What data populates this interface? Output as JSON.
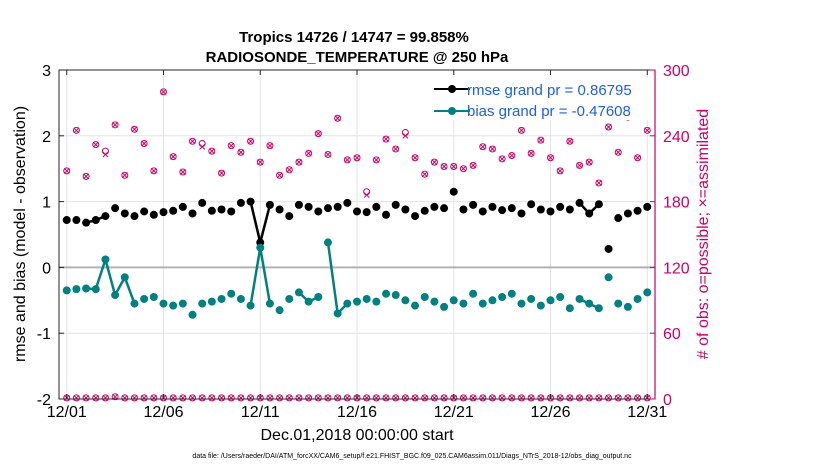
{
  "chart_data": {
    "type": "line",
    "title": [
      "Tropics 14726 / 14747 = 99.858%",
      "RADIOSONDE_TEMPERATURE @ 250 hPa"
    ],
    "xlabel": "Dec.01,2018 00:00:00 start",
    "ylabel_left": "rmse and bias (model - observation)",
    "ylabel_right": "# of obs: o=possible; ×=assimilated",
    "footnote": "data file: /Users/raeder/DAI/ATM_forcXX/CAM6_setup/f.e21.FHIST_BGC.f09_025.CAM6assim.011/Diags_NTrS_2018-12/obs_diag_output.nc",
    "xlim": [
      0.6,
      31.4
    ],
    "ylim_left": [
      -2,
      3
    ],
    "ylim_right": [
      0,
      300
    ],
    "xticks": [
      1,
      6,
      11,
      16,
      21,
      26,
      31
    ],
    "xtick_labels": [
      "12/01",
      "12/06",
      "12/11",
      "12/16",
      "12/21",
      "12/26",
      "12/31"
    ],
    "yticks_left": [
      -2,
      -1,
      0,
      1,
      2,
      3
    ],
    "ytick_labels_left": [
      "-2",
      "-1",
      "0",
      "1",
      "2",
      "3"
    ],
    "yticks_right": [
      0,
      60,
      120,
      180,
      240,
      300
    ],
    "ytick_labels_right": [
      "0",
      "60",
      "120",
      "180",
      "240",
      "300"
    ],
    "x": [
      1.0,
      1.5,
      2.0,
      2.5,
      3.0,
      3.5,
      4.0,
      4.5,
      5.0,
      5.5,
      6.0,
      6.5,
      7.0,
      7.5,
      8.0,
      8.5,
      9.0,
      9.5,
      10.0,
      10.5,
      11.0,
      11.5,
      12.0,
      12.5,
      13.0,
      13.5,
      14.0,
      14.5,
      15.0,
      15.5,
      16.0,
      16.5,
      17.0,
      17.5,
      18.0,
      18.5,
      19.0,
      19.5,
      20.0,
      20.5,
      21.0,
      21.5,
      22.0,
      22.5,
      23.0,
      23.5,
      24.0,
      24.5,
      25.0,
      25.5,
      26.0,
      26.5,
      27.0,
      27.5,
      28.0,
      28.5,
      29.0,
      29.5,
      30.0,
      30.5,
      31.0
    ],
    "series": [
      {
        "name": "rmse grand pr = 0.86795",
        "axis": "left",
        "color": "#000000",
        "connected": [
          [
            2.0,
            2.5,
            3.0
          ],
          [
            10.5,
            11.0,
            11.5
          ],
          [
            27.5,
            28.0,
            28.5
          ]
        ],
        "values": [
          0.72,
          0.72,
          0.68,
          0.72,
          0.78,
          0.9,
          0.82,
          0.78,
          0.85,
          0.8,
          0.84,
          0.86,
          0.92,
          0.82,
          0.98,
          0.86,
          0.88,
          0.85,
          0.98,
          1.0,
          0.38,
          0.95,
          0.88,
          0.78,
          0.95,
          0.92,
          0.85,
          0.9,
          0.92,
          0.98,
          0.85,
          0.84,
          0.92,
          0.8,
          0.95,
          0.88,
          0.78,
          0.86,
          0.92,
          0.9,
          1.15,
          0.88,
          0.95,
          0.85,
          0.92,
          0.87,
          0.9,
          0.82,
          0.96,
          0.88,
          0.85,
          0.92,
          0.88,
          0.98,
          0.82,
          0.96,
          0.28,
          0.75,
          0.82,
          0.86,
          0.92
        ]
      },
      {
        "name": "bias grand pr = -0.47608",
        "axis": "left",
        "color": "#008080",
        "connected": [
          [
            2.0,
            2.5,
            3.0,
            3.5,
            4.0,
            4.5
          ],
          [
            10.5,
            11.0,
            11.5
          ],
          [
            13.0,
            13.5,
            14.0
          ],
          [
            14.5,
            15.0,
            15.5
          ],
          [
            27.5,
            28.0,
            28.5
          ]
        ],
        "values": [
          -0.35,
          -0.33,
          -0.32,
          -0.33,
          0.12,
          -0.42,
          -0.15,
          -0.55,
          -0.48,
          -0.45,
          -0.55,
          -0.58,
          -0.55,
          -0.72,
          -0.55,
          -0.52,
          -0.48,
          -0.4,
          -0.48,
          -0.58,
          0.3,
          -0.55,
          -0.65,
          -0.48,
          -0.38,
          -0.52,
          -0.45,
          0.38,
          -0.7,
          -0.55,
          -0.52,
          -0.48,
          -0.52,
          -0.4,
          -0.42,
          -0.5,
          -0.58,
          -0.45,
          -0.52,
          -0.6,
          -0.5,
          -0.55,
          -0.4,
          -0.55,
          -0.5,
          -0.45,
          -0.4,
          -0.55,
          -0.48,
          -0.58,
          -0.5,
          -0.45,
          -0.62,
          -0.48,
          -0.55,
          -0.62,
          -0.15,
          -0.55,
          -0.6,
          -0.48,
          -0.38
        ]
      },
      {
        "name": "obs possible",
        "axis": "right",
        "color": "#cc0066",
        "marker": "o",
        "values": [
          208,
          245,
          203,
          232,
          226,
          250,
          204,
          246,
          233,
          208,
          280,
          221,
          207,
          235,
          233,
          226,
          206,
          231,
          225,
          235,
          216,
          231,
          204,
          209,
          216,
          224,
          242,
          223,
          256,
          218,
          220,
          189,
          218,
          237,
          228,
          243,
          220,
          205,
          216,
          212,
          212,
          210,
          213,
          230,
          228,
          219,
          222,
          245,
          224,
          236,
          220,
          208,
          235,
          213,
          216,
          197,
          248,
          225,
          257,
          220,
          245
        ]
      },
      {
        "name": "obs assimilated",
        "axis": "right",
        "color": "#cc0066",
        "marker": "x",
        "values": [
          208,
          245,
          203,
          232,
          223,
          250,
          204,
          246,
          233,
          208,
          280,
          221,
          207,
          235,
          230,
          226,
          206,
          231,
          225,
          235,
          216,
          231,
          204,
          209,
          216,
          224,
          242,
          223,
          256,
          218,
          220,
          186,
          218,
          237,
          228,
          240,
          220,
          205,
          216,
          212,
          212,
          210,
          213,
          230,
          228,
          219,
          222,
          245,
          224,
          236,
          220,
          208,
          235,
          213,
          216,
          197,
          248,
          225,
          257,
          220,
          245
        ]
      },
      {
        "name": "obs baseline possible",
        "axis": "right",
        "color": "#cc0066",
        "marker": "o",
        "values": [
          1,
          1,
          1,
          1,
          1,
          2,
          1,
          1,
          1,
          1,
          1,
          1,
          1,
          1,
          1,
          1,
          1,
          1,
          1,
          1,
          1,
          1,
          1,
          1,
          1,
          1,
          1,
          1,
          1,
          1,
          1,
          1,
          1,
          1,
          1,
          1,
          1,
          1,
          1,
          1,
          1,
          1,
          1,
          1,
          1,
          1,
          1,
          1,
          1,
          1,
          1,
          1,
          1,
          1,
          1,
          1,
          1,
          1,
          1,
          1,
          1
        ]
      },
      {
        "name": "obs baseline assimilated",
        "axis": "right",
        "color": "#cc0066",
        "marker": "x",
        "values": [
          1,
          1,
          1,
          1,
          1,
          2,
          1,
          1,
          1,
          1,
          1,
          1,
          1,
          1,
          1,
          1,
          1,
          1,
          1,
          1,
          1,
          1,
          1,
          1,
          1,
          1,
          1,
          1,
          1,
          1,
          1,
          1,
          1,
          1,
          1,
          1,
          1,
          1,
          1,
          1,
          1,
          1,
          1,
          1,
          1,
          1,
          1,
          1,
          1,
          1,
          1,
          1,
          1,
          1,
          1,
          1,
          1,
          1,
          1,
          1,
          1
        ]
      }
    ],
    "legend": [
      "rmse grand pr = 0.86795",
      "bias grand pr = -0.47608"
    ],
    "legend_position": "top-right",
    "grid": true,
    "zero_line": true
  },
  "colors": {
    "rmse": "#000000",
    "bias": "#008080",
    "obs": "#cc0066",
    "legend_text": "#1f5fe0",
    "grid": "#e3e3e3",
    "axis": "#262626"
  }
}
